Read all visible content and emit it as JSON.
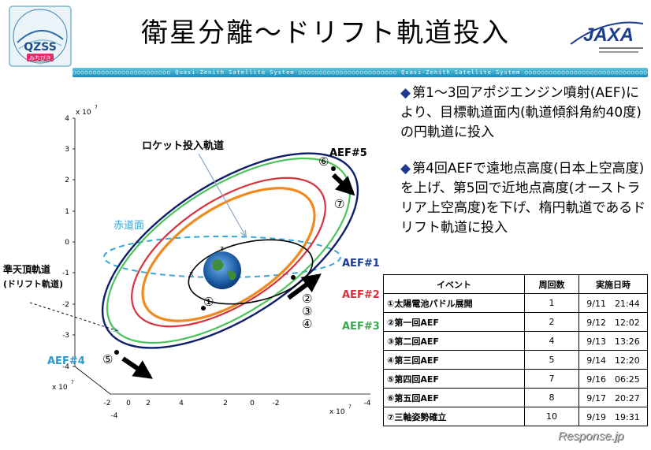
{
  "title": "衛星分離～ドリフト軌道投入",
  "logo": {
    "text": "QZSS",
    "subtitle": "みちびき"
  },
  "jaxa": {
    "text": "JAXA"
  },
  "banner": {
    "text": "○○○○○○○○○○○○○○○○○○○○○○○○ Quasi-Zenith Satellite System ○○○○○○○○○○○○○○○○○○○○○○○○ Quasi-Zenith Satellite System ○○○○○○○○○○○○○○○○○○○○○○○○○○○○○○○○"
  },
  "bullets": [
    {
      "marker": "◆",
      "text": "第1～3回アポジエンジン噴射(AEF)により、目標軌道面内(軌道傾斜角約40度)の円軌道に投入"
    },
    {
      "marker": "◆",
      "text": "第4回AEFで遠地点高度(日本上空高度)を上げ、第5回で近地点高度(オーストラリア上空高度)を下げ、楕円軌道であるドリフト軌道に投入"
    }
  ],
  "diagram": {
    "labels": {
      "rocket": "ロケット投入軌道",
      "equator": "赤道面",
      "qzss_line1": "準天頂軌道",
      "qzss_line2": "(ドリフト軌道)",
      "aef1": "AEF#1",
      "aef2": "AEF#2",
      "aef3": "AEF#3",
      "aef4": "AEF#4",
      "aef5": "AEF#5"
    },
    "markers": [
      "①",
      "②",
      "③",
      "④",
      "⑤",
      "⑥",
      "⑦"
    ],
    "axes": {
      "exponent_base": "x 10",
      "exponent_power": "7",
      "z_ticks": [
        "4",
        "3",
        "2",
        "1",
        "0",
        "-1",
        "-2",
        "-3",
        "-4"
      ],
      "x_ticks": [
        "4",
        "2",
        "0",
        "-2",
        "-4"
      ],
      "y_ticks": [
        "2",
        "0",
        "-2",
        "-4"
      ],
      "axis_letters": [
        "x",
        "z"
      ]
    },
    "colors": {
      "drift": "#0d1e6b",
      "green": "#4cc35a",
      "red": "#d8323c",
      "orange": "#f08a1e",
      "equator": "#35a8d8",
      "aef1": "#1a3a9c",
      "aef2": "#d8323c",
      "aef3": "#3aa84e",
      "aef4": "#2a9ad0"
    }
  },
  "table": {
    "headers": [
      "イベント",
      "周回数",
      "実施日時"
    ],
    "rows": [
      {
        "event": "①太陽電池パドル展開",
        "orbit": "1",
        "datetime": "9/11　21:44"
      },
      {
        "event": "②第一回AEF",
        "orbit": "2",
        "datetime": "9/12　12:02"
      },
      {
        "event": "③第二回AEF",
        "orbit": "4",
        "datetime": "9/13　13:26"
      },
      {
        "event": "④第三回AEF",
        "orbit": "5",
        "datetime": "9/14　12:20"
      },
      {
        "event": "⑤第四回AEF",
        "orbit": "7",
        "datetime": "9/16　06:25"
      },
      {
        "event": "⑥第五回AEF",
        "orbit": "8",
        "datetime": "9/17　20:27"
      },
      {
        "event": "⑦三軸姿勢確立",
        "orbit": "10",
        "datetime": "9/19　19:31"
      }
    ]
  },
  "credit": "Response.jp"
}
